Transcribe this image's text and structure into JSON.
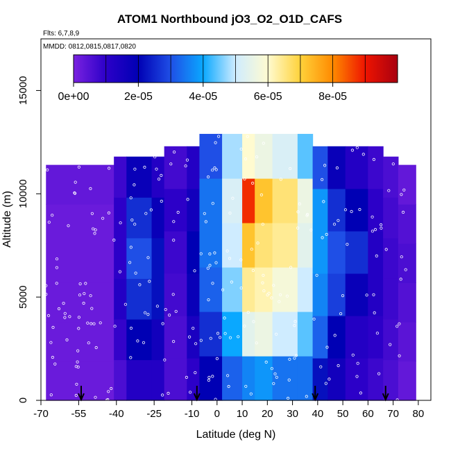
{
  "chart_data": {
    "type": "heatmap",
    "title": "ATOM1 Northbound jO3_O2_O1D_CAFS",
    "subtitle_flights": "Flts: 6,7,8,9",
    "subtitle_dates": "MMDD: 0812,0815,0817,0820",
    "xlabel": "Latitude (deg N)",
    "ylabel": "Altitude (m)",
    "xlim": [
      -70,
      85
    ],
    "ylim": [
      0,
      17500
    ],
    "x_ticks": [
      "-70",
      "-55",
      "-40",
      "-25",
      "-10",
      "0",
      "10",
      "20",
      "30",
      "40",
      "50",
      "60",
      "70",
      "80"
    ],
    "y_ticks": [
      "0",
      "5000",
      "10000",
      "15000"
    ],
    "colorbar": {
      "range": [
        0,
        0.0001
      ],
      "tick_labels": [
        "0e+00",
        "2e-05",
        "4e-05",
        "6e-05",
        "8e-05"
      ],
      "tick_values": [
        0,
        2e-05,
        4e-05,
        6e-05,
        8e-05
      ],
      "colors": [
        "#7a22e0",
        "#2c00c8",
        "#0000b4",
        "#1f4fe6",
        "#0aa8ff",
        "#cfecff",
        "#fffbd0",
        "#ffd23a",
        "#ff8a00",
        "#ee1400",
        "#a80010"
      ]
    },
    "landing_markers_lat": [
      -54,
      -8,
      39,
      67
    ],
    "columns": [
      {
        "lat": [
          -68,
          -41
        ],
        "top": 11400,
        "v": [
          2e-06,
          2e-06,
          2e-06,
          2e-06,
          2e-06,
          3e-06
        ]
      },
      {
        "lat": [
          -41,
          -36
        ],
        "top": 11800,
        "v": [
          6e-06,
          9e-06,
          1.2e-05,
          1e-05,
          1e-05,
          8e-06
        ]
      },
      {
        "lat": [
          -36,
          -26
        ],
        "top": 11800,
        "v": [
          1.2e-05,
          2e-05,
          2.6e-05,
          3e-05,
          2.6e-05,
          1.8e-05
        ]
      },
      {
        "lat": [
          -26,
          -21
        ],
        "top": 11800,
        "v": [
          1.2e-05,
          1.6e-05,
          2.2e-05,
          2.2e-05,
          1.8e-05,
          1.2e-05
        ]
      },
      {
        "lat": [
          -21,
          -12
        ],
        "top": 12300,
        "v": [
          6e-06,
          6e-06,
          7e-06,
          8e-06,
          1e-05,
          7e-06
        ]
      },
      {
        "lat": [
          -12,
          -7
        ],
        "top": 12300,
        "v": [
          1e-05,
          1.4e-05,
          1.8e-05,
          2e-05,
          1.6e-05,
          1.2e-05
        ]
      },
      {
        "lat": [
          -7,
          2
        ],
        "top": 12900,
        "v": [
          2e-05,
          2.6e-05,
          3.2e-05,
          3.4e-05,
          3.4e-05,
          3e-05
        ]
      },
      {
        "lat": [
          2,
          10
        ],
        "top": 12900,
        "v": [
          3.2e-05,
          4e-05,
          4.6e-05,
          5e-05,
          5.2e-05,
          4.8e-05
        ]
      },
      {
        "lat": [
          10,
          15
        ],
        "top": 12900,
        "v": [
          3.6e-05,
          5.4e-05,
          6.4e-05,
          7.2e-05,
          8.8e-05,
          6e-05
        ]
      },
      {
        "lat": [
          15,
          22
        ],
        "top": 12900,
        "v": [
          3.8e-05,
          5.6e-05,
          6.2e-05,
          6.6e-05,
          7.2e-05,
          5.6e-05
        ]
      },
      {
        "lat": [
          22,
          32
        ],
        "top": 12900,
        "v": [
          3.4e-05,
          5e-05,
          5.8e-05,
          6.4e-05,
          6.6e-05,
          5.2e-05
        ]
      },
      {
        "lat": [
          32,
          38
        ],
        "top": 12900,
        "v": [
          3.4e-05,
          4.4e-05,
          5e-05,
          5.4e-05,
          5.6e-05,
          4.4e-05
        ]
      },
      {
        "lat": [
          38,
          44
        ],
        "top": 12300,
        "v": [
          2.2e-05,
          3.2e-05,
          3.6e-05,
          3.8e-05,
          3.8e-05,
          3e-05
        ]
      },
      {
        "lat": [
          44,
          51
        ],
        "top": 12300,
        "v": [
          1.6e-05,
          2e-05,
          2.8e-05,
          3e-05,
          2.6e-05,
          1.8e-05
        ]
      },
      {
        "lat": [
          51,
          60
        ],
        "top": 12300,
        "v": [
          1e-05,
          1.2e-05,
          1.8e-05,
          2.6e-05,
          2e-05,
          1.2e-05
        ]
      },
      {
        "lat": [
          60,
          66
        ],
        "top": 12300,
        "v": [
          8e-06,
          1e-05,
          1.2e-05,
          1.2e-05,
          1e-05,
          8e-06
        ]
      },
      {
        "lat": [
          66,
          72
        ],
        "top": 11800,
        "v": [
          6e-06,
          7e-06,
          8e-06,
          8e-06,
          7e-06,
          6e-06
        ]
      },
      {
        "lat": [
          72,
          79
        ],
        "top": 11400,
        "v": [
          3e-06,
          4e-06,
          5e-06,
          6e-06,
          5e-06,
          3e-06
        ]
      }
    ]
  }
}
